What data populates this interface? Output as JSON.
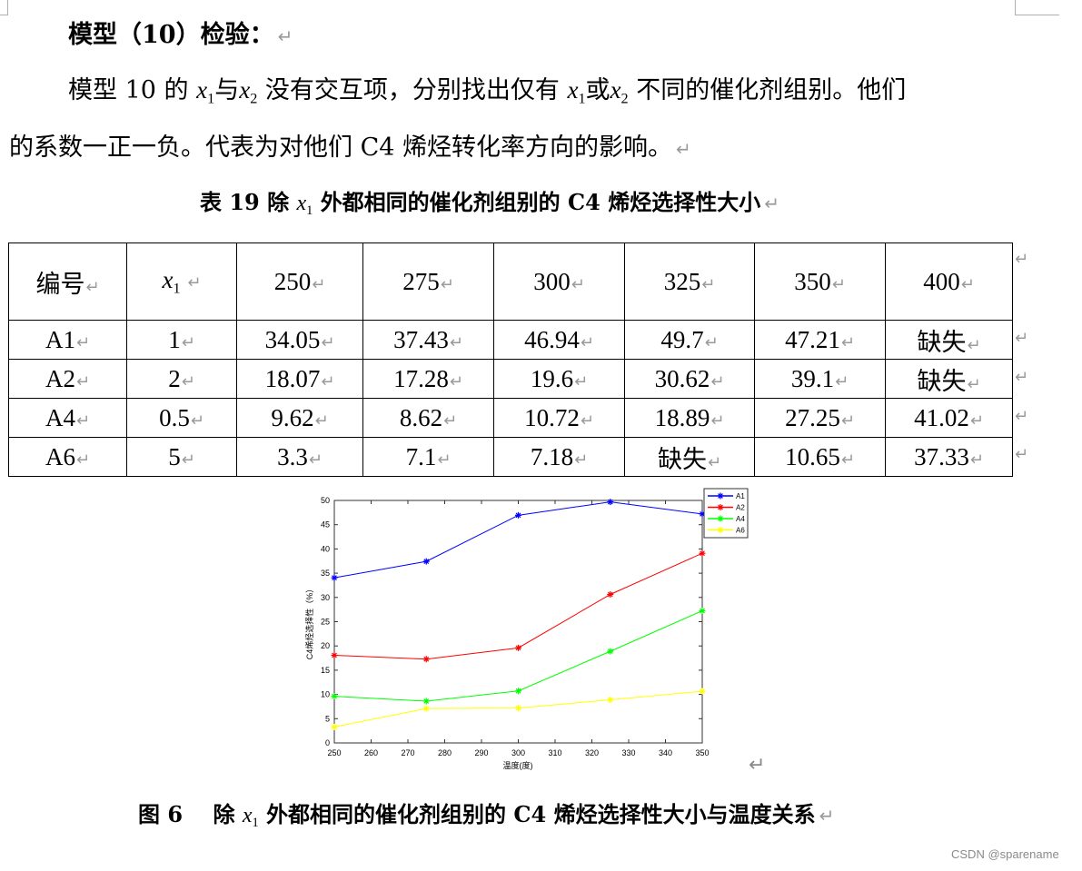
{
  "heading": {
    "text": "模型（10）检验：",
    "mark": "↵"
  },
  "paragraph": {
    "line1_prefix": "模型 10 的",
    "var_x": "x",
    "sub_1": "1",
    "sub_2": "2",
    "word_and": "与",
    "line1_mid": "没有交互项，分别找出仅有",
    "word_or": "或",
    "line1_suffix": "不同的催化剂组别。他们",
    "line2": "的系数一正一负。代表为对他们 C4 烯烃转化率方向的影响。",
    "mark": "↵"
  },
  "table_caption": {
    "prefix": "表 19  除",
    "var": "x",
    "sub": "1",
    "suffix": "外都相同的催化剂组别的 C4 烯烃选择性大小",
    "mark": "↵"
  },
  "table": {
    "headers": [
      "编号",
      "x",
      "250",
      "275",
      "300",
      "325",
      "350",
      "400"
    ],
    "header_x_sub": "1",
    "rows": [
      [
        "A1",
        "1",
        "34.05",
        "37.43",
        "46.94",
        "49.7",
        "47.21",
        "缺失"
      ],
      [
        "A2",
        "2",
        "18.07",
        "17.28",
        "19.6",
        "30.62",
        "39.1",
        "缺失"
      ],
      [
        "A4",
        "0.5",
        "9.62",
        "8.62",
        "10.72",
        "18.89",
        "27.25",
        "41.02"
      ],
      [
        "A6",
        "5",
        "3.3",
        "7.1",
        "7.18",
        "缺失",
        "10.65",
        "37.33"
      ]
    ],
    "cell_mark": "↵",
    "row_mark": "↵"
  },
  "chart_data": {
    "type": "line",
    "title": "",
    "xlabel": "温度(度)",
    "ylabel": "C4烯烃选择性（%）",
    "x": [
      250,
      275,
      300,
      325,
      350
    ],
    "xlim": [
      250,
      350
    ],
    "ylim": [
      0,
      50
    ],
    "xticks": [
      250,
      260,
      270,
      280,
      290,
      300,
      310,
      320,
      330,
      340,
      350
    ],
    "yticks": [
      0,
      5,
      10,
      15,
      20,
      25,
      30,
      35,
      40,
      45,
      50
    ],
    "grid": false,
    "legend_position": "top-right-outside",
    "marker": "*",
    "series": [
      {
        "name": "A1",
        "color": "#0000ff",
        "values": [
          34.05,
          37.43,
          46.94,
          49.7,
          47.21
        ]
      },
      {
        "name": "A2",
        "color": "#ff0000",
        "values": [
          18.07,
          17.28,
          19.6,
          30.62,
          39.1
        ]
      },
      {
        "name": "A4",
        "color": "#00ff00",
        "values": [
          9.62,
          8.62,
          10.72,
          18.89,
          27.25
        ]
      },
      {
        "name": "A6",
        "color": "#ffff00",
        "values": [
          3.3,
          7.1,
          7.18,
          8.9,
          10.65
        ]
      }
    ]
  },
  "figure_caption": {
    "prefix": "图 6    除",
    "var": "x",
    "sub": "1",
    "suffix": "外都相同的催化剂组别的 C4 烯烃选择性大小与温度关系",
    "mark": "↵"
  },
  "figure_mark": "↵",
  "watermark": "CSDN @sparename"
}
